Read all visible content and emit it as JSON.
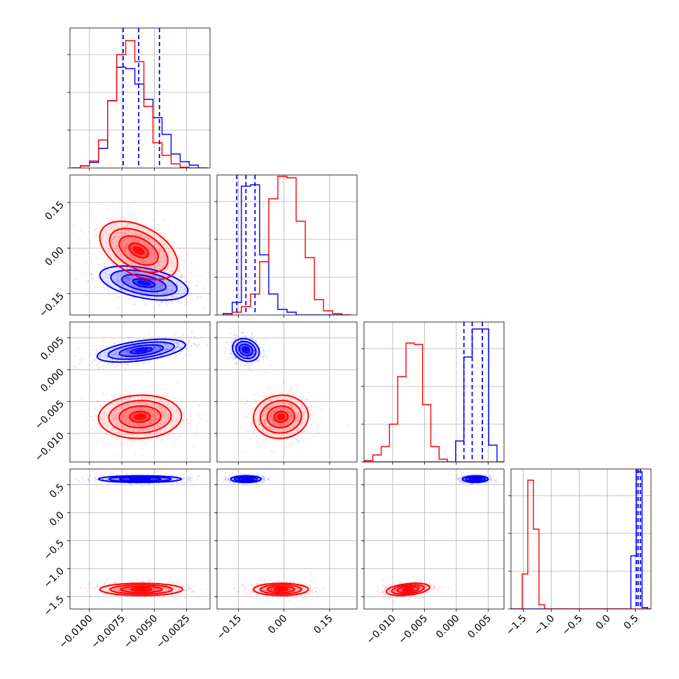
{
  "chart_data": {
    "type": "corner",
    "grid": true,
    "colors": {
      "blue": "#0000ff",
      "red": "#ff0000"
    },
    "series": [
      {
        "color": "#0000ff"
      },
      {
        "color": "#ff0000"
      }
    ],
    "params": [
      {
        "range": [
          -0.0115,
          -0.0007
        ],
        "ticks": [
          -0.01,
          -0.0075,
          -0.005,
          -0.0025
        ],
        "tick_labels": [
          "−0.0100",
          "−0.0075",
          "−0.0050",
          "−0.0025"
        ],
        "quantiles": [
          -0.0074,
          -0.0062,
          -0.0046
        ],
        "hist": {
          "edges": [
            -0.0114,
            -0.0107,
            -0.01,
            -0.0093,
            -0.0086,
            -0.0079,
            -0.0072,
            -0.0065,
            -0.0058,
            -0.0051,
            -0.0044,
            -0.0037,
            -0.003,
            -0.0023,
            -0.0016,
            -0.0009
          ],
          "blue": [
            0.0,
            0.015,
            0.04,
            0.14,
            0.48,
            0.72,
            0.71,
            0.6,
            0.49,
            0.36,
            0.24,
            0.1,
            0.045,
            0.02,
            0.0
          ],
          "red": [
            0.0,
            0.015,
            0.05,
            0.2,
            0.48,
            0.81,
            0.91,
            0.76,
            0.44,
            0.18,
            0.09,
            0.03,
            0.005,
            0.0,
            0.0
          ]
        }
      },
      {
        "range": [
          -0.22,
          0.24
        ],
        "ticks": [
          -0.15,
          0.0,
          0.15
        ],
        "tick_labels": [
          "−0.15",
          "0.00",
          "0.15"
        ],
        "quantiles": [
          -0.155,
          -0.125,
          -0.095
        ],
        "hist": {
          "edges": [
            -0.2,
            -0.17,
            -0.14,
            -0.11,
            -0.08,
            -0.05,
            -0.02,
            0.01,
            0.04,
            0.07,
            0.1,
            0.13,
            0.16,
            0.19,
            0.22
          ],
          "blue": [
            0.01,
            0.09,
            0.92,
            0.93,
            0.43,
            0.15,
            0.04,
            0.02,
            0.0,
            0.0,
            0.0,
            0.0,
            0.0,
            0.0
          ],
          "red": [
            0.0,
            0.02,
            0.06,
            0.15,
            0.38,
            0.83,
            0.99,
            0.98,
            0.67,
            0.41,
            0.11,
            0.03,
            0.01,
            0.0
          ]
        }
      },
      {
        "range": [
          -0.0145,
          0.0075
        ],
        "ticks": [
          -0.01,
          -0.005,
          0.0,
          0.005
        ],
        "tick_labels": [
          "−0.010",
          "−0.005",
          "0.000",
          "0.005"
        ],
        "quantiles": [
          0.0012,
          0.0025,
          0.0041
        ],
        "hist": {
          "edges": [
            -0.0144,
            -0.0131,
            -0.0118,
            -0.0105,
            -0.0092,
            -0.0079,
            -0.0066,
            -0.0053,
            -0.004,
            -0.0027,
            -0.0014,
            -0.0001,
            0.0012,
            0.0025,
            0.0038,
            0.0051,
            0.0064,
            0.0077
          ],
          "blue": [
            0.0,
            0.0,
            0.0,
            0.0,
            0.0,
            0.0,
            0.0,
            0.0,
            0.0,
            0.0,
            0.0,
            0.15,
            0.75,
            0.95,
            0.95,
            0.12,
            0.0
          ],
          "red": [
            0.01,
            0.05,
            0.11,
            0.27,
            0.61,
            0.85,
            0.84,
            0.41,
            0.11,
            0.02,
            0.0,
            0.0,
            0.0,
            0.0,
            0.0,
            0.0,
            0.0
          ]
        }
      },
      {
        "range": [
          -1.72,
          0.78
        ],
        "ticks": [
          -1.5,
          -1.0,
          -0.5,
          0.0,
          0.5
        ],
        "tick_labels": [
          "−1.5",
          "−1.0",
          "−0.5",
          "0.0",
          "0.5"
        ],
        "quantiles": [
          0.52,
          0.55,
          0.59
        ],
        "hist": {
          "edges": [
            -1.72,
            -1.62,
            -1.52,
            -1.42,
            -1.32,
            -1.22,
            -1.12,
            -1.02,
            -0.92,
            0.42,
            0.52,
            0.62,
            0.72,
            0.78
          ],
          "blue": [
            0.0,
            0.0,
            0.0,
            0.0,
            0.0,
            0.0,
            0.0,
            0.0,
            0.0,
            0.38,
            0.98,
            0.01,
            0.0
          ],
          "red": [
            0.0,
            0.0,
            0.25,
            0.92,
            0.57,
            0.03,
            0.0,
            0.0,
            0.0,
            0.0,
            0.0,
            0.0,
            0.0
          ]
        }
      }
    ],
    "clusters": {
      "1_0": {
        "blue": {
          "mean": [
            -0.0058,
            -0.115
          ],
          "sd": [
            0.0017,
            0.028
          ],
          "corr": -0.45
        },
        "red": {
          "mean": [
            -0.0062,
            -0.008
          ],
          "sd": [
            0.0015,
            0.048
          ],
          "corr": -0.45
        }
      },
      "2_0": {
        "blue": {
          "mean": [
            -0.006,
            0.003
          ],
          "sd": [
            0.0017,
            0.0009
          ],
          "corr": 0.5
        },
        "red": {
          "mean": [
            -0.0061,
            -0.0074
          ],
          "sd": [
            0.0016,
            0.0017
          ],
          "corr": 0.05
        }
      },
      "2_1": {
        "blue": {
          "mean": [
            -0.125,
            0.0031
          ],
          "sd": [
            0.022,
            0.0009
          ],
          "corr": -0.2
        },
        "red": {
          "mean": [
            -0.01,
            -0.0074
          ],
          "sd": [
            0.045,
            0.0017
          ],
          "corr": 0.05
        }
      },
      "3_0": {
        "blue": {
          "mean": [
            -0.0061,
            0.6
          ],
          "sd": [
            0.0016,
            0.03
          ],
          "corr": 0.0
        },
        "red": {
          "mean": [
            -0.006,
            -1.37
          ],
          "sd": [
            0.0016,
            0.055
          ],
          "corr": 0.0
        }
      },
      "3_1": {
        "blue": {
          "mean": [
            -0.125,
            0.6
          ],
          "sd": [
            0.025,
            0.03
          ],
          "corr": 0.0
        },
        "red": {
          "mean": [
            -0.01,
            -1.37
          ],
          "sd": [
            0.045,
            0.055
          ],
          "corr": 0.0
        }
      },
      "3_2": {
        "blue": {
          "mean": [
            0.003,
            0.6
          ],
          "sd": [
            0.001,
            0.03
          ],
          "corr": 0.0
        },
        "red": {
          "mean": [
            -0.0076,
            -1.37
          ],
          "sd": [
            0.0017,
            0.055
          ],
          "corr": 0.35
        }
      }
    }
  }
}
